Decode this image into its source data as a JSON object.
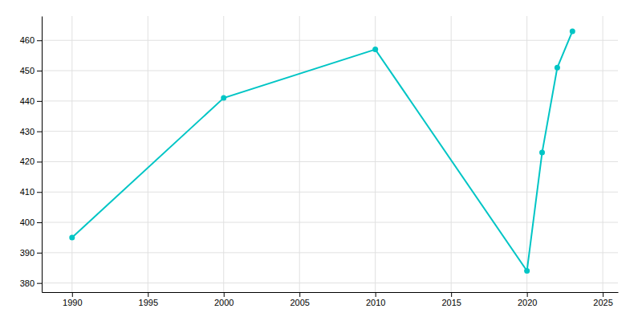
{
  "chart_data": {
    "type": "line",
    "x": [
      1990,
      2000,
      2010,
      2020,
      2021,
      2022,
      2023
    ],
    "values": [
      395,
      441,
      457,
      384,
      423,
      451,
      463
    ],
    "color": "#00C5C5",
    "marker": "circle",
    "xlim": [
      1988,
      2026
    ],
    "ylim": [
      377,
      468
    ],
    "xticks": [
      1990,
      1995,
      2000,
      2005,
      2010,
      2015,
      2020,
      2025
    ],
    "yticks": [
      380,
      390,
      400,
      410,
      420,
      430,
      440,
      450,
      460
    ],
    "grid": true
  }
}
